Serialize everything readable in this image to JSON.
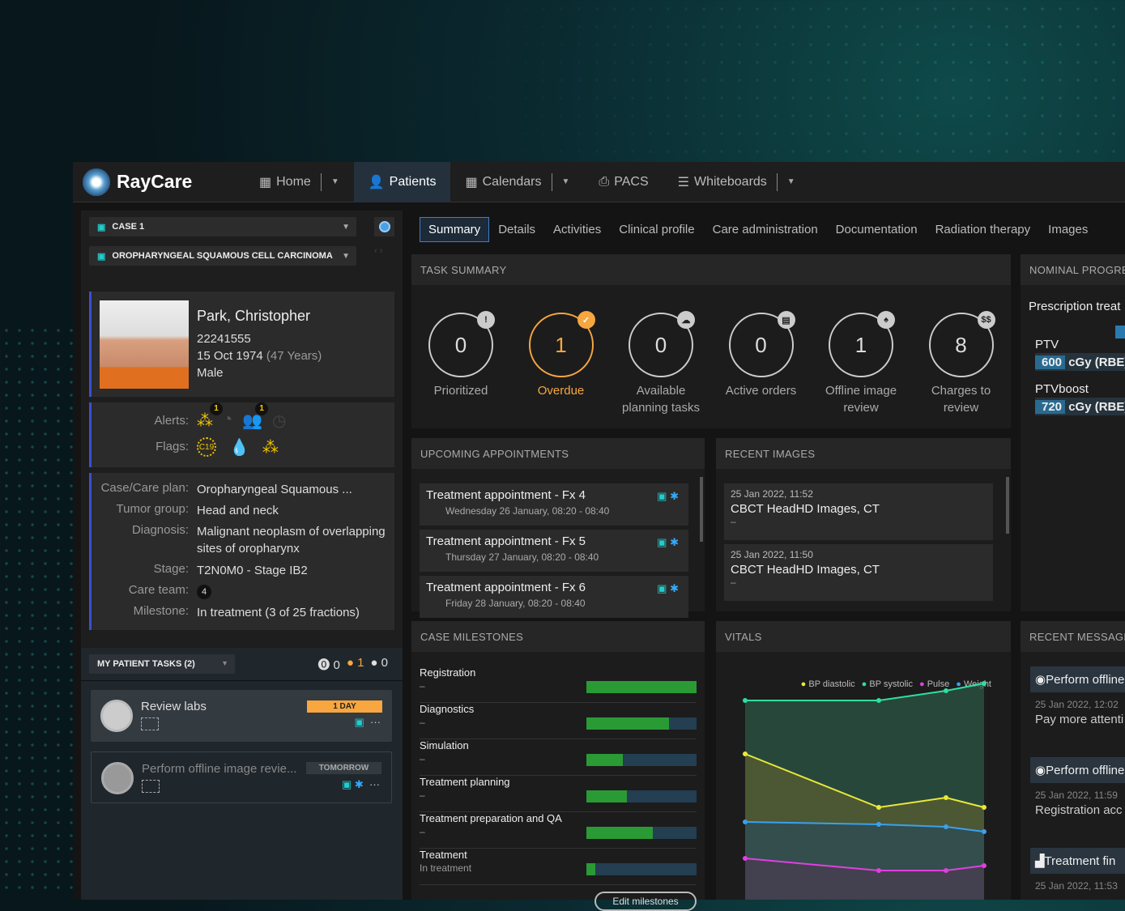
{
  "app": {
    "name": "RayCare"
  },
  "nav": [
    {
      "label": "Home",
      "icon": "grid-icon",
      "dropdown": true
    },
    {
      "label": "Patients",
      "icon": "person-icon",
      "active": true
    },
    {
      "label": "Calendars",
      "icon": "calendar-icon",
      "dropdown": true
    },
    {
      "label": "PACS",
      "icon": "printer-icon"
    },
    {
      "label": "Whiteboards",
      "icon": "list-icon",
      "dropdown": true
    }
  ],
  "case": {
    "case_label": "CASE 1",
    "diagnosis_label": "OROPHARYNGEAL SQUAMOUS CELL CARCINOMA"
  },
  "patient": {
    "name": "Park, Christopher",
    "id": "22241555",
    "dob": "15 Oct 1974",
    "age": "(47 Years)",
    "sex": "Male"
  },
  "alerts": {
    "alerts_label": "Alerts:",
    "flags_label": "Flags:",
    "alert_badge_1": "1",
    "alert_badge_2": "1",
    "flag_c19": "C19"
  },
  "details": [
    {
      "label": "Case/Care plan:",
      "value": "Oropharyngeal Squamous ..."
    },
    {
      "label": "Tumor group:",
      "value": "Head and neck"
    },
    {
      "label": "Diagnosis:",
      "value": "Malignant neoplasm of overlapping sites of oropharynx"
    },
    {
      "label": "Stage:",
      "value": "T2N0M0 - Stage IB2"
    },
    {
      "label": "Care team:",
      "value": "4"
    },
    {
      "label": "Milestone:",
      "value": "In treatment (3 of 25 fractions)"
    }
  ],
  "my_tasks": {
    "title": "MY PATIENT TASKS (2)",
    "counts": [
      "0",
      "1",
      "0"
    ],
    "items": [
      {
        "title": "Review labs",
        "due": "1 DAY",
        "due_color": "#f7a640"
      },
      {
        "title": "Perform offline image revie...",
        "due": "TOMORROW"
      }
    ]
  },
  "tabs": [
    "Summary",
    "Details",
    "Activities",
    "Clinical profile",
    "Care administration",
    "Documentation",
    "Radiation therapy",
    "Images"
  ],
  "task_summary": {
    "title": "TASK SUMMARY",
    "items": [
      {
        "count": "0",
        "label": "Prioritized",
        "badge": "!"
      },
      {
        "count": "1",
        "label": "Overdue",
        "badge": "✓",
        "highlight": "#f7a640"
      },
      {
        "count": "0",
        "label": "Available planning tasks",
        "badge": "☁"
      },
      {
        "count": "0",
        "label": "Active orders",
        "badge": "▤"
      },
      {
        "count": "1",
        "label": "Offline image review",
        "badge": "♠"
      },
      {
        "count": "8",
        "label": "Charges to review",
        "badge": "$$"
      }
    ]
  },
  "appointments": {
    "title": "UPCOMING APPOINTMENTS",
    "items": [
      {
        "title": "Treatment appointment - Fx 4",
        "when": "Wednesday 26 January, 08:20 - 08:40"
      },
      {
        "title": "Treatment appointment - Fx 5",
        "when": "Thursday 27 January, 08:20 - 08:40"
      },
      {
        "title": "Treatment appointment - Fx 6",
        "when": "Friday 28 January, 08:20 - 08:40"
      }
    ]
  },
  "recent_images": {
    "title": "RECENT IMAGES",
    "items": [
      {
        "date": "25 Jan 2022, 11:52",
        "name": "CBCT HeadHD Images, CT",
        "note": "–"
      },
      {
        "date": "25 Jan 2022, 11:50",
        "name": "CBCT HeadHD Images, CT",
        "note": "–"
      }
    ]
  },
  "milestones": {
    "title": "CASE MILESTONES",
    "edit_label": "Edit milestones",
    "items": [
      {
        "name": "Registration",
        "status": "–",
        "progress": 100
      },
      {
        "name": "Diagnostics",
        "status": "–",
        "progress": 75
      },
      {
        "name": "Simulation",
        "status": "–",
        "progress": 33
      },
      {
        "name": "Treatment planning",
        "status": "–",
        "progress": 37
      },
      {
        "name": "Treatment preparation and QA",
        "status": "–",
        "progress": 60
      },
      {
        "name": "Treatment",
        "status": "In treatment",
        "progress": 8
      }
    ]
  },
  "vitals": {
    "title": "VITALS",
    "series": [
      {
        "name": "BP diastolic",
        "color": "#e8e83a",
        "values": [
          60,
          38,
          42,
          38
        ]
      },
      {
        "name": "BP systolic",
        "color": "#2de0a0",
        "values": [
          82,
          82,
          86,
          89
        ]
      },
      {
        "name": "Pulse",
        "color": "#e040e0",
        "values": [
          17,
          12,
          12,
          14
        ]
      },
      {
        "name": "Weight",
        "color": "#3aa0f0",
        "values": [
          32,
          31,
          30,
          28
        ]
      }
    ]
  },
  "nominal": {
    "title": "NOMINAL PROGRESS",
    "subtitle": "Prescription treat",
    "targets": [
      {
        "name": "PTV",
        "dose": "600",
        "unit": "cGy (RBE)"
      },
      {
        "name": "PTVboost",
        "dose": "720",
        "unit": "cGy (RBE)"
      }
    ]
  },
  "messages": {
    "title": "RECENT MESSAGES",
    "items": [
      {
        "title": "Perform offline",
        "date": "25 Jan 2022, 12:02",
        "text": "Pay more attenti"
      },
      {
        "title": "Perform offline",
        "date": "25 Jan 2022, 11:59",
        "text": "Registration acc"
      },
      {
        "title": "Treatment fin",
        "date": "25 Jan 2022, 11:53",
        "text": ""
      }
    ]
  }
}
